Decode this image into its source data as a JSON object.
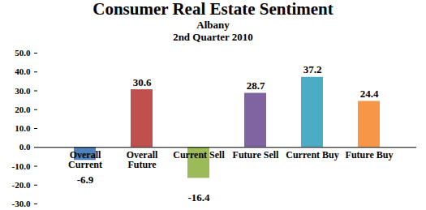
{
  "chart_data": {
    "type": "bar",
    "title": "Consumer Real Estate Sentiment",
    "subtitle": [
      "Albany",
      "2nd Quarter 2010"
    ],
    "categories": [
      "Overall Current",
      "Overall Future",
      "Current Sell",
      "Future Sell",
      "Current Buy",
      "Future Buy"
    ],
    "values": [
      -6.9,
      30.6,
      -16.4,
      28.7,
      37.2,
      24.4
    ],
    "colors": [
      "#4f81bd",
      "#c0504d",
      "#9bbb59",
      "#8064a2",
      "#4bacc6",
      "#f79646"
    ],
    "ylim": [
      -30,
      50
    ],
    "yticks": [
      {
        "value": -30,
        "label": "-30.0"
      },
      {
        "value": -20,
        "label": "-20.0"
      },
      {
        "value": -10,
        "label": "-10.0"
      },
      {
        "value": 0,
        "label": "0.0"
      },
      {
        "value": 10,
        "label": "10.0"
      },
      {
        "value": 20,
        "label": "20.0"
      },
      {
        "value": 30,
        "label": "30.0"
      },
      {
        "value": 40,
        "label": "40.0"
      },
      {
        "value": 50,
        "label": "50.0"
      }
    ],
    "grid": false,
    "data_labels": true
  }
}
